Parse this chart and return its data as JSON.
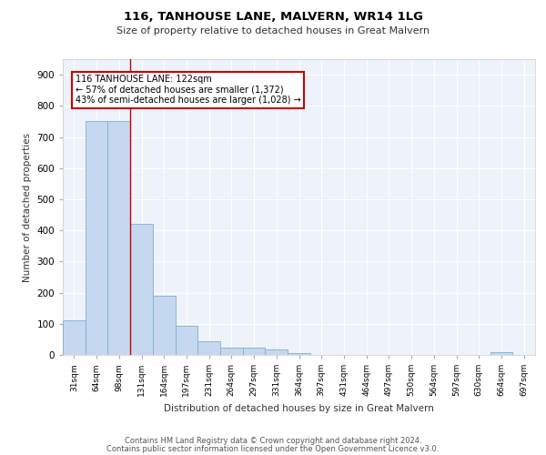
{
  "title1": "116, TANHOUSE LANE, MALVERN, WR14 1LG",
  "title2": "Size of property relative to detached houses in Great Malvern",
  "xlabel": "Distribution of detached houses by size in Great Malvern",
  "ylabel": "Number of detached properties",
  "bar_heights": [
    110,
    750,
    750,
    420,
    190,
    95,
    43,
    22,
    22,
    18,
    5,
    0,
    0,
    0,
    0,
    0,
    0,
    0,
    0,
    8,
    0
  ],
  "labels": [
    "31sqm",
    "64sqm",
    "98sqm",
    "131sqm",
    "164sqm",
    "197sqm",
    "231sqm",
    "264sqm",
    "297sqm",
    "331sqm",
    "364sqm",
    "397sqm",
    "431sqm",
    "464sqm",
    "497sqm",
    "530sqm",
    "564sqm",
    "597sqm",
    "630sqm",
    "664sqm",
    "697sqm"
  ],
  "bar_color": "#c5d8f0",
  "bar_edge_color": "#7bafd4",
  "vline_x": 2.5,
  "vline_color": "#cc0000",
  "annotation_line1": "116 TANHOUSE LANE: 122sqm",
  "annotation_line2": "← 57% of detached houses are smaller (1,372)",
  "annotation_line3": "43% of semi-detached houses are larger (1,028) →",
  "annotation_box_color": "#ffffff",
  "annotation_box_edge": "#cc0000",
  "ylim": [
    0,
    950
  ],
  "yticks": [
    0,
    100,
    200,
    300,
    400,
    500,
    600,
    700,
    800,
    900
  ],
  "background_color": "#eef2fa",
  "footer_line1": "Contains HM Land Registry data © Crown copyright and database right 2024.",
  "footer_line2": "Contains public sector information licensed under the Open Government Licence v3.0.",
  "num_bars": 21
}
